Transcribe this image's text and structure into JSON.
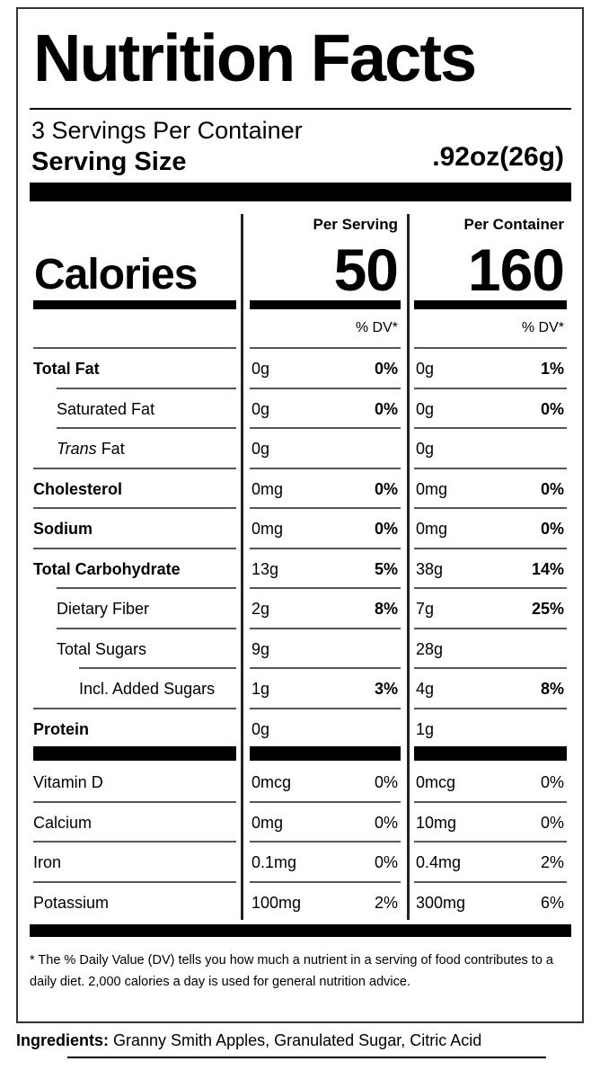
{
  "header": {
    "title": "Nutrition Facts",
    "servings_per_container": "3 Servings Per Container",
    "serving_size_label": "Serving Size",
    "serving_size_value": ".92oz(26g)"
  },
  "columns": {
    "per_serving": "Per Serving",
    "per_container": "Per Container",
    "dv_label": "% DV*"
  },
  "calories": {
    "label": "Calories",
    "per_serving": "50",
    "per_container": "160"
  },
  "nutrients": [
    {
      "label": "Total Fat",
      "bold": true,
      "indent": 0,
      "serving_amount": "0g",
      "serving_dv": "0%",
      "container_amount": "0g",
      "container_dv": "1%"
    },
    {
      "label": "Saturated Fat",
      "bold": false,
      "indent": 1,
      "serving_amount": "0g",
      "serving_dv": "0%",
      "container_amount": "0g",
      "container_dv": "0%"
    },
    {
      "label": "Trans Fat",
      "label_italic_part": "Trans",
      "label_rest": " Fat",
      "bold": false,
      "indent": 1,
      "serving_amount": "0g",
      "serving_dv": "",
      "container_amount": "0g",
      "container_dv": ""
    },
    {
      "label": "Cholesterol",
      "bold": true,
      "indent": 0,
      "serving_amount": "0mg",
      "serving_dv": "0%",
      "container_amount": "0mg",
      "container_dv": "0%"
    },
    {
      "label": "Sodium",
      "bold": true,
      "indent": 0,
      "serving_amount": "0mg",
      "serving_dv": "0%",
      "container_amount": "0mg",
      "container_dv": "0%"
    },
    {
      "label": "Total Carbohydrate",
      "bold": true,
      "indent": 0,
      "serving_amount": "13g",
      "serving_dv": "5%",
      "container_amount": "38g",
      "container_dv": "14%"
    },
    {
      "label": "Dietary Fiber",
      "bold": false,
      "indent": 1,
      "serving_amount": "2g",
      "serving_dv": "8%",
      "container_amount": "7g",
      "container_dv": "25%"
    },
    {
      "label": "Total Sugars",
      "bold": false,
      "indent": 1,
      "serving_amount": "9g",
      "serving_dv": "",
      "container_amount": "28g",
      "container_dv": ""
    },
    {
      "label": "Incl. Added Sugars",
      "bold": false,
      "indent": 2,
      "serving_amount": "1g",
      "serving_dv": "3%",
      "container_amount": "4g",
      "container_dv": "8%"
    },
    {
      "label": "Protein",
      "bold": true,
      "indent": 0,
      "serving_amount": "0g",
      "serving_dv": "",
      "container_amount": "1g",
      "container_dv": ""
    }
  ],
  "vitamins": [
    {
      "label": "Vitamin D",
      "serving_amount": "0mcg",
      "serving_dv": "0%",
      "container_amount": "0mcg",
      "container_dv": "0%"
    },
    {
      "label": "Calcium",
      "serving_amount": "0mg",
      "serving_dv": "0%",
      "container_amount": "10mg",
      "container_dv": "0%"
    },
    {
      "label": "Iron",
      "serving_amount": "0.1mg",
      "serving_dv": "0%",
      "container_amount": "0.4mg",
      "container_dv": "2%"
    },
    {
      "label": "Potassium",
      "serving_amount": "100mg",
      "serving_dv": "2%",
      "container_amount": "300mg",
      "container_dv": "6%"
    }
  ],
  "footnote": "* The % Daily Value (DV) tells you how much a nutrient in a serving of food contributes to a daily diet. 2,000 calories a day is used for general nutrition advice.",
  "ingredients": {
    "label": "Ingredients:",
    "text": " Granny Smith Apples, Granulated Sugar, Citric Acid"
  }
}
